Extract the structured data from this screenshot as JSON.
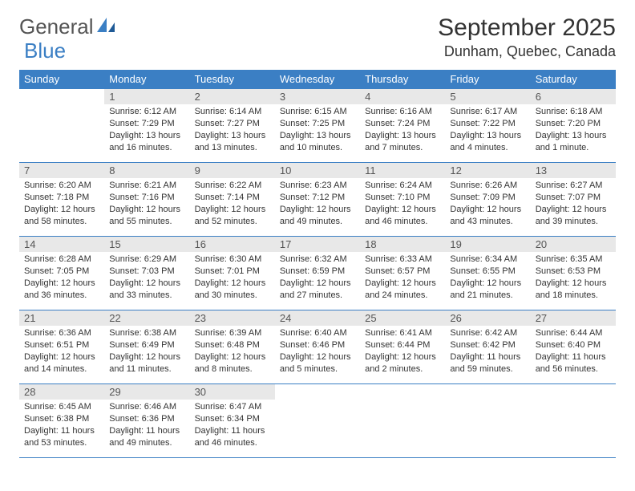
{
  "brand": {
    "word1": "General",
    "word2": "Blue"
  },
  "title": "September 2025",
  "location": "Dunham, Quebec, Canada",
  "colors": {
    "accent": "#3b7fc4",
    "daynum_bg": "#e8e8e8",
    "text": "#333333",
    "bg": "#ffffff"
  },
  "weekdays": [
    "Sunday",
    "Monday",
    "Tuesday",
    "Wednesday",
    "Thursday",
    "Friday",
    "Saturday"
  ],
  "weeks": [
    [
      {
        "n": "",
        "sr": "",
        "ss": "",
        "dl": ""
      },
      {
        "n": "1",
        "sr": "Sunrise: 6:12 AM",
        "ss": "Sunset: 7:29 PM",
        "dl": "Daylight: 13 hours and 16 minutes."
      },
      {
        "n": "2",
        "sr": "Sunrise: 6:14 AM",
        "ss": "Sunset: 7:27 PM",
        "dl": "Daylight: 13 hours and 13 minutes."
      },
      {
        "n": "3",
        "sr": "Sunrise: 6:15 AM",
        "ss": "Sunset: 7:25 PM",
        "dl": "Daylight: 13 hours and 10 minutes."
      },
      {
        "n": "4",
        "sr": "Sunrise: 6:16 AM",
        "ss": "Sunset: 7:24 PM",
        "dl": "Daylight: 13 hours and 7 minutes."
      },
      {
        "n": "5",
        "sr": "Sunrise: 6:17 AM",
        "ss": "Sunset: 7:22 PM",
        "dl": "Daylight: 13 hours and 4 minutes."
      },
      {
        "n": "6",
        "sr": "Sunrise: 6:18 AM",
        "ss": "Sunset: 7:20 PM",
        "dl": "Daylight: 13 hours and 1 minute."
      }
    ],
    [
      {
        "n": "7",
        "sr": "Sunrise: 6:20 AM",
        "ss": "Sunset: 7:18 PM",
        "dl": "Daylight: 12 hours and 58 minutes."
      },
      {
        "n": "8",
        "sr": "Sunrise: 6:21 AM",
        "ss": "Sunset: 7:16 PM",
        "dl": "Daylight: 12 hours and 55 minutes."
      },
      {
        "n": "9",
        "sr": "Sunrise: 6:22 AM",
        "ss": "Sunset: 7:14 PM",
        "dl": "Daylight: 12 hours and 52 minutes."
      },
      {
        "n": "10",
        "sr": "Sunrise: 6:23 AM",
        "ss": "Sunset: 7:12 PM",
        "dl": "Daylight: 12 hours and 49 minutes."
      },
      {
        "n": "11",
        "sr": "Sunrise: 6:24 AM",
        "ss": "Sunset: 7:10 PM",
        "dl": "Daylight: 12 hours and 46 minutes."
      },
      {
        "n": "12",
        "sr": "Sunrise: 6:26 AM",
        "ss": "Sunset: 7:09 PM",
        "dl": "Daylight: 12 hours and 43 minutes."
      },
      {
        "n": "13",
        "sr": "Sunrise: 6:27 AM",
        "ss": "Sunset: 7:07 PM",
        "dl": "Daylight: 12 hours and 39 minutes."
      }
    ],
    [
      {
        "n": "14",
        "sr": "Sunrise: 6:28 AM",
        "ss": "Sunset: 7:05 PM",
        "dl": "Daylight: 12 hours and 36 minutes."
      },
      {
        "n": "15",
        "sr": "Sunrise: 6:29 AM",
        "ss": "Sunset: 7:03 PM",
        "dl": "Daylight: 12 hours and 33 minutes."
      },
      {
        "n": "16",
        "sr": "Sunrise: 6:30 AM",
        "ss": "Sunset: 7:01 PM",
        "dl": "Daylight: 12 hours and 30 minutes."
      },
      {
        "n": "17",
        "sr": "Sunrise: 6:32 AM",
        "ss": "Sunset: 6:59 PM",
        "dl": "Daylight: 12 hours and 27 minutes."
      },
      {
        "n": "18",
        "sr": "Sunrise: 6:33 AM",
        "ss": "Sunset: 6:57 PM",
        "dl": "Daylight: 12 hours and 24 minutes."
      },
      {
        "n": "19",
        "sr": "Sunrise: 6:34 AM",
        "ss": "Sunset: 6:55 PM",
        "dl": "Daylight: 12 hours and 21 minutes."
      },
      {
        "n": "20",
        "sr": "Sunrise: 6:35 AM",
        "ss": "Sunset: 6:53 PM",
        "dl": "Daylight: 12 hours and 18 minutes."
      }
    ],
    [
      {
        "n": "21",
        "sr": "Sunrise: 6:36 AM",
        "ss": "Sunset: 6:51 PM",
        "dl": "Daylight: 12 hours and 14 minutes."
      },
      {
        "n": "22",
        "sr": "Sunrise: 6:38 AM",
        "ss": "Sunset: 6:49 PM",
        "dl": "Daylight: 12 hours and 11 minutes."
      },
      {
        "n": "23",
        "sr": "Sunrise: 6:39 AM",
        "ss": "Sunset: 6:48 PM",
        "dl": "Daylight: 12 hours and 8 minutes."
      },
      {
        "n": "24",
        "sr": "Sunrise: 6:40 AM",
        "ss": "Sunset: 6:46 PM",
        "dl": "Daylight: 12 hours and 5 minutes."
      },
      {
        "n": "25",
        "sr": "Sunrise: 6:41 AM",
        "ss": "Sunset: 6:44 PM",
        "dl": "Daylight: 12 hours and 2 minutes."
      },
      {
        "n": "26",
        "sr": "Sunrise: 6:42 AM",
        "ss": "Sunset: 6:42 PM",
        "dl": "Daylight: 11 hours and 59 minutes."
      },
      {
        "n": "27",
        "sr": "Sunrise: 6:44 AM",
        "ss": "Sunset: 6:40 PM",
        "dl": "Daylight: 11 hours and 56 minutes."
      }
    ],
    [
      {
        "n": "28",
        "sr": "Sunrise: 6:45 AM",
        "ss": "Sunset: 6:38 PM",
        "dl": "Daylight: 11 hours and 53 minutes."
      },
      {
        "n": "29",
        "sr": "Sunrise: 6:46 AM",
        "ss": "Sunset: 6:36 PM",
        "dl": "Daylight: 11 hours and 49 minutes."
      },
      {
        "n": "30",
        "sr": "Sunrise: 6:47 AM",
        "ss": "Sunset: 6:34 PM",
        "dl": "Daylight: 11 hours and 46 minutes."
      },
      {
        "n": "",
        "sr": "",
        "ss": "",
        "dl": ""
      },
      {
        "n": "",
        "sr": "",
        "ss": "",
        "dl": ""
      },
      {
        "n": "",
        "sr": "",
        "ss": "",
        "dl": ""
      },
      {
        "n": "",
        "sr": "",
        "ss": "",
        "dl": ""
      }
    ]
  ]
}
